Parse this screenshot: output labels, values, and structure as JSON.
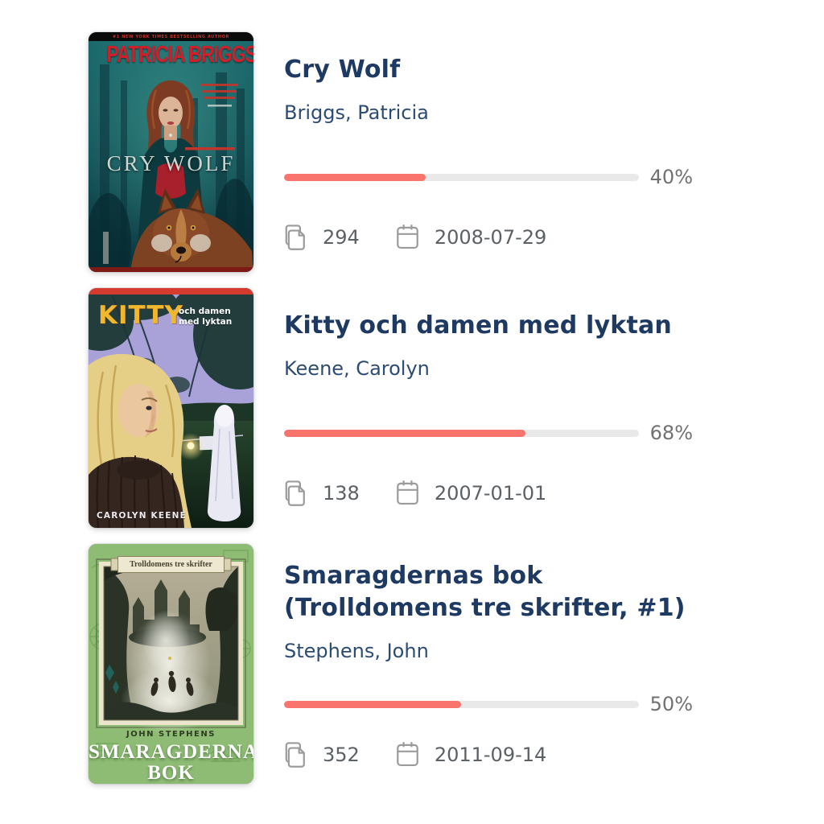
{
  "colors": {
    "title_navy": "#1e3a62",
    "author_navy": "#2d4c74",
    "progress_fill": "#f9746c",
    "progress_track": "#e9e9e9",
    "meta_gray": "#5c6166",
    "icon_gray": "#9b9b9b"
  },
  "books": [
    {
      "title": "Cry Wolf",
      "author": "Briggs, Patricia",
      "progress_percent": 40,
      "progress_label": "40%",
      "pages": "294",
      "date": "2008-07-29",
      "cover": {
        "banner": "#1 NEW YORK TIMES BESTSELLING AUTHOR",
        "cover_author": "PATRICIA BRIGGS",
        "cover_title": "CRY WOLF"
      }
    },
    {
      "title": "Kitty och damen med lyktan",
      "author": "Keene, Carolyn",
      "progress_percent": 68,
      "progress_label": "68%",
      "pages": "138",
      "date": "2007-01-01",
      "cover": {
        "series": "KITTY",
        "subtitle": "och damen med lyktan",
        "cover_author": "CAROLYN KEENE"
      }
    },
    {
      "title": "Smaragdernas bok (Trolldomens tre skrifter, #1)",
      "author": "Stephens, John",
      "progress_percent": 50,
      "progress_label": "50%",
      "pages": "352",
      "date": "2011-09-14",
      "cover": {
        "series_banner": "Trolldomens tre skrifter",
        "cover_author": "JOHN STEPHENS",
        "cover_title_line1": "SMARAGDERNAS",
        "cover_title_line2": "BOK"
      }
    }
  ]
}
